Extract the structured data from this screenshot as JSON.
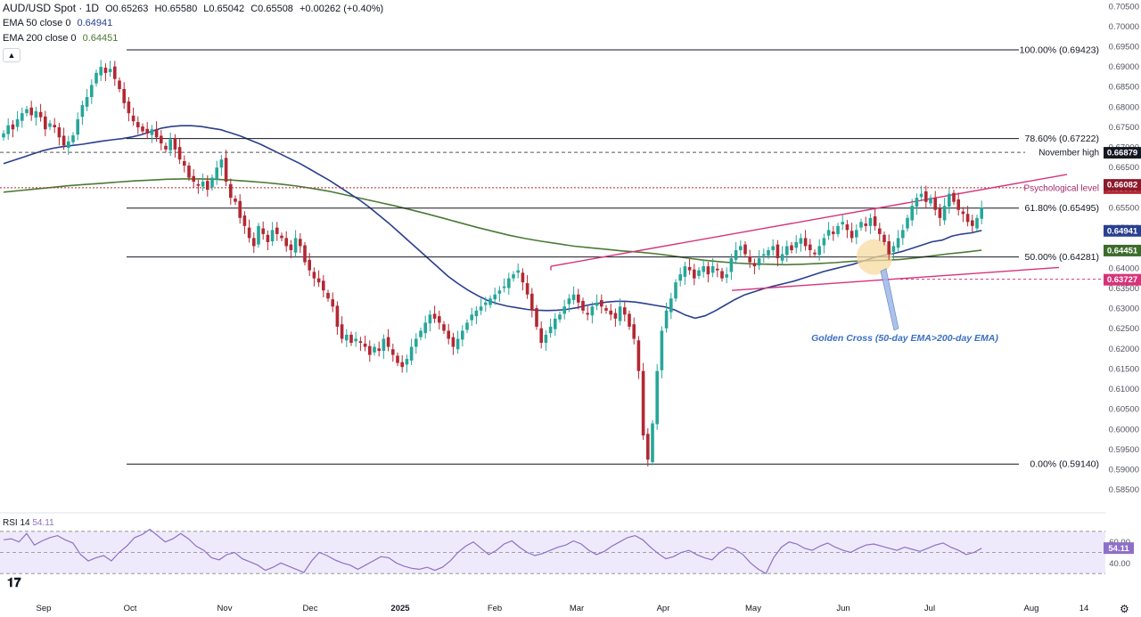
{
  "header": {
    "symbol": "AUD/USD Spot · 1D",
    "open": "O0.65263",
    "high": "H0.65580",
    "low": "L0.65042",
    "close": "C0.65508",
    "change": "+0.00262 (+0.40%)",
    "ema50_label": "EMA 50 close 0",
    "ema50_value": "0.64941",
    "ema200_label": "EMA 200 close 0",
    "ema200_value": "0.64451",
    "rsi_label": "RSI 14",
    "rsi_value": "54.11",
    "collapse_icon": "chevron-up-icon"
  },
  "colors": {
    "up": "#26a69a",
    "down": "#b22833",
    "ema50": "#2a3f8f",
    "ema200": "#4a7a35",
    "channel": "#d6337a",
    "rsi": "#8e6fc8",
    "rsi_band": "#efeafb",
    "annotation": "#3a6fc4",
    "highlight": "#f7d9a0"
  },
  "chart_data": {
    "type": "candlestick",
    "price_axis": {
      "min": 0.5815,
      "max": 0.7055,
      "ticks": [
        "0.70500",
        "0.70000",
        "0.69500",
        "0.69000",
        "0.68500",
        "0.68000",
        "0.67500",
        "0.67000",
        "0.66500",
        "0.66000",
        "0.65500",
        "0.65000",
        "0.64500",
        "0.64000",
        "0.63500",
        "0.63000",
        "0.62500",
        "0.62000",
        "0.61500",
        "0.61000",
        "0.60500",
        "0.60000",
        "0.59500",
        "0.59000",
        "0.58500"
      ]
    },
    "time_axis": [
      "Sep",
      "Oct",
      "Nov",
      "Dec",
      "2025",
      "Feb",
      "Mar",
      "Apr",
      "May",
      "Jun",
      "Jul",
      "Aug",
      "14"
    ],
    "fibonacci": [
      {
        "label": "100.00% (0.69423)",
        "value": 0.69423
      },
      {
        "label": "78.60% (0.67222)",
        "value": 0.67222
      },
      {
        "label": "61.80% (0.65495)",
        "value": 0.65495
      },
      {
        "label": "50.00% (0.64281)",
        "value": 0.64281
      },
      {
        "label": "0.00% (0.59140)",
        "value": 0.5914
      }
    ],
    "reference_lines": [
      {
        "label": "November high",
        "value": 0.66879,
        "badge": "0.66879",
        "badge_color": "#131722"
      },
      {
        "label": "Psychological level",
        "value": 0.66,
        "badge": "0.66000",
        "badge_color": "#b22833"
      }
    ],
    "price_badges": [
      {
        "text": "0.66082",
        "value": 0.66082,
        "color": "#8b1a2b"
      },
      {
        "text": "0.64941",
        "value": 0.64941,
        "color": "#2a3f8f"
      },
      {
        "text": "0.64451",
        "value": 0.64451,
        "color": "#3d6b2c"
      },
      {
        "text": "0.63727",
        "value": 0.63727,
        "color": "#d6337a"
      }
    ],
    "annotation": "Golden Cross (50-day EMA>200-day EMA)",
    "closes": [
      0.6735,
      0.6755,
      0.6745,
      0.677,
      0.6785,
      0.6795,
      0.678,
      0.679,
      0.6775,
      0.6745,
      0.676,
      0.675,
      0.6725,
      0.6705,
      0.6715,
      0.673,
      0.677,
      0.6805,
      0.6825,
      0.6855,
      0.6885,
      0.69,
      0.6885,
      0.6895,
      0.687,
      0.6845,
      0.681,
      0.6785,
      0.6765,
      0.675,
      0.674,
      0.6735,
      0.6745,
      0.6725,
      0.671,
      0.6695,
      0.672,
      0.6695,
      0.667,
      0.6655,
      0.6625,
      0.6615,
      0.6605,
      0.6615,
      0.6595,
      0.6625,
      0.665,
      0.667,
      0.6615,
      0.6575,
      0.6565,
      0.6525,
      0.6505,
      0.6475,
      0.6455,
      0.6505,
      0.6485,
      0.6465,
      0.6495,
      0.6485,
      0.6475,
      0.6455,
      0.6445,
      0.6475,
      0.6455,
      0.6415,
      0.6395,
      0.6375,
      0.6365,
      0.6345,
      0.6325,
      0.6305,
      0.6255,
      0.6225,
      0.6235,
      0.6215,
      0.6225,
      0.6215,
      0.6205,
      0.6185,
      0.6205,
      0.6195,
      0.6225,
      0.6205,
      0.6185,
      0.6165,
      0.6155,
      0.6175,
      0.6205,
      0.6225,
      0.6245,
      0.6265,
      0.6285,
      0.6275,
      0.6265,
      0.6245,
      0.6225,
      0.6205,
      0.6225,
      0.6245,
      0.6265,
      0.6285,
      0.6295,
      0.6305,
      0.6315,
      0.6325,
      0.6335,
      0.6345,
      0.6355,
      0.6375,
      0.6385,
      0.6395,
      0.6365,
      0.6335,
      0.6295,
      0.6255,
      0.6215,
      0.6235,
      0.6255,
      0.6275,
      0.6285,
      0.6305,
      0.6325,
      0.6335,
      0.6315,
      0.6295,
      0.6285,
      0.6305,
      0.6315,
      0.6305,
      0.6295,
      0.6285,
      0.6275,
      0.6305,
      0.6285,
      0.6255,
      0.6225,
      0.6145,
      0.5985,
      0.5925,
      0.6015,
      0.6145,
      0.6245,
      0.6295,
      0.6325,
      0.6365,
      0.6385,
      0.6405,
      0.6395,
      0.6375,
      0.6395,
      0.6405,
      0.6385,
      0.6405,
      0.6395,
      0.6375,
      0.6385,
      0.6425,
      0.6445,
      0.6455,
      0.6435,
      0.6415,
      0.6405,
      0.6425,
      0.6435,
      0.6445,
      0.6455,
      0.6425,
      0.6435,
      0.6455,
      0.6445,
      0.6465,
      0.6475,
      0.6455,
      0.6445,
      0.6435,
      0.6455,
      0.6475,
      0.6495,
      0.6485,
      0.6505,
      0.6515,
      0.6495,
      0.6475,
      0.6495,
      0.6515,
      0.6505,
      0.6525,
      0.6505,
      0.6485,
      0.6465,
      0.6435,
      0.6455,
      0.6475,
      0.6495,
      0.6525,
      0.6555,
      0.6575,
      0.6585,
      0.6565,
      0.6575,
      0.6545,
      0.6525,
      0.6555,
      0.6585,
      0.6565,
      0.6545,
      0.6535,
      0.6515,
      0.6505,
      0.6525,
      0.6551
    ],
    "ema50": [
      0.666,
      0.6668,
      0.6676,
      0.6684,
      0.6692,
      0.6698,
      0.6702,
      0.6705,
      0.6708,
      0.6712,
      0.6716,
      0.6719,
      0.6722,
      0.6726,
      0.6732,
      0.674,
      0.6748,
      0.6752,
      0.6754,
      0.6754,
      0.6752,
      0.6748,
      0.6744,
      0.6736,
      0.6728,
      0.6718,
      0.6708,
      0.6696,
      0.6684,
      0.6672,
      0.666,
      0.6646,
      0.6632,
      0.6618,
      0.6602,
      0.6586,
      0.657,
      0.6552,
      0.6532,
      0.6512,
      0.649,
      0.6468,
      0.6446,
      0.6424,
      0.6402,
      0.638,
      0.6362,
      0.6346,
      0.6332,
      0.632,
      0.6312,
      0.6306,
      0.6302,
      0.6298,
      0.6296,
      0.6295,
      0.6296,
      0.6298,
      0.6302,
      0.6308,
      0.6312,
      0.6316,
      0.6318,
      0.6318,
      0.6316,
      0.6312,
      0.6308,
      0.6304,
      0.6296,
      0.6284,
      0.6276,
      0.6282,
      0.6294,
      0.6308,
      0.6322,
      0.6334,
      0.6342,
      0.635,
      0.6356,
      0.6362,
      0.6368,
      0.6376,
      0.6384,
      0.6392,
      0.6398,
      0.6404,
      0.641,
      0.6418,
      0.6426,
      0.6432,
      0.6436,
      0.6442,
      0.645,
      0.6458,
      0.6466,
      0.647,
      0.648,
      0.6485,
      0.6488,
      0.6494
    ],
    "ema200": [
      0.6589,
      0.6593,
      0.6597,
      0.6601,
      0.6605,
      0.6608,
      0.6611,
      0.6614,
      0.6617,
      0.6619,
      0.6621,
      0.6622,
      0.6622,
      0.6621,
      0.6619,
      0.6616,
      0.6613,
      0.6609,
      0.6604,
      0.6598,
      0.6591,
      0.6582,
      0.6573,
      0.6564,
      0.6555,
      0.6545,
      0.6535,
      0.6524,
      0.6513,
      0.6502,
      0.6492,
      0.6482,
      0.6474,
      0.6467,
      0.6461,
      0.6455,
      0.6451,
      0.6447,
      0.6443,
      0.644,
      0.6436,
      0.6431,
      0.6425,
      0.642,
      0.6416,
      0.6413,
      0.6411,
      0.641,
      0.6409,
      0.641,
      0.6412,
      0.6414,
      0.6417,
      0.6419,
      0.642,
      0.6422,
      0.6426,
      0.6431,
      0.6436,
      0.644,
      0.6445
    ],
    "rsi_axis": {
      "ticks": [
        "60.00",
        "40.00"
      ],
      "upper": 70,
      "lower": 30,
      "current": "54.11"
    },
    "rsi": [
      62,
      63,
      60,
      68,
      57,
      61,
      64,
      66,
      62,
      59,
      48,
      42,
      45,
      47,
      42,
      50,
      56,
      64,
      67,
      72,
      66,
      60,
      63,
      68,
      63,
      56,
      52,
      45,
      43,
      48,
      50,
      44,
      41,
      38,
      33,
      36,
      40,
      37,
      34,
      31,
      42,
      50,
      47,
      43,
      40,
      38,
      34,
      38,
      42,
      46,
      45,
      40,
      37,
      35,
      34,
      36,
      33,
      36,
      42,
      50,
      56,
      60,
      54,
      48,
      52,
      58,
      61,
      55,
      50,
      47,
      49,
      52,
      55,
      57,
      61,
      58,
      52,
      48,
      51,
      56,
      60,
      64,
      66,
      62,
      55,
      49,
      44,
      46,
      50,
      52,
      48,
      45,
      43,
      50,
      55,
      53,
      48,
      40,
      34,
      30,
      45,
      55,
      60,
      58,
      54,
      52,
      56,
      59,
      55,
      52,
      50,
      54,
      57,
      58,
      56,
      54,
      52,
      55,
      53,
      51,
      54,
      57,
      59,
      55,
      52,
      48,
      50,
      54
    ]
  }
}
